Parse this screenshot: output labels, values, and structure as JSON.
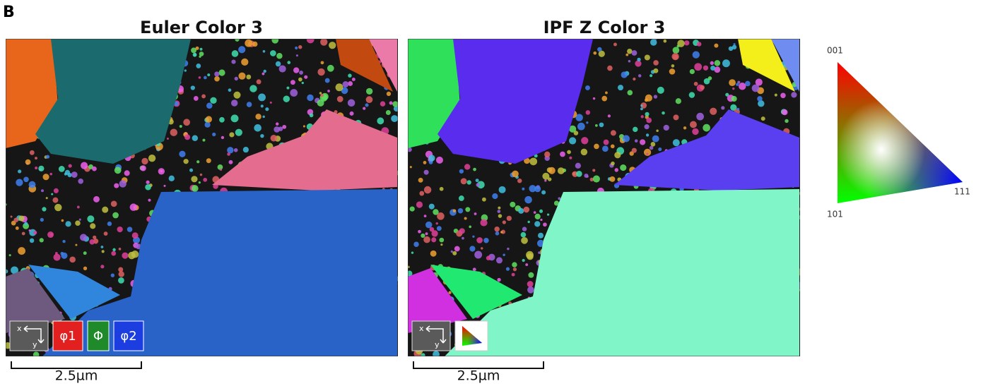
{
  "panel_label": "B",
  "panels": [
    {
      "title": "Euler Color 3",
      "scale_bar": "2.5µm",
      "legend": [
        "φ1",
        "Φ",
        "φ2"
      ]
    },
    {
      "title": "IPF Z Color 3",
      "scale_bar": "2.5µm"
    }
  ],
  "ipf_key": {
    "top": "001",
    "bottom_left": "101",
    "bottom_right": "111"
  }
}
